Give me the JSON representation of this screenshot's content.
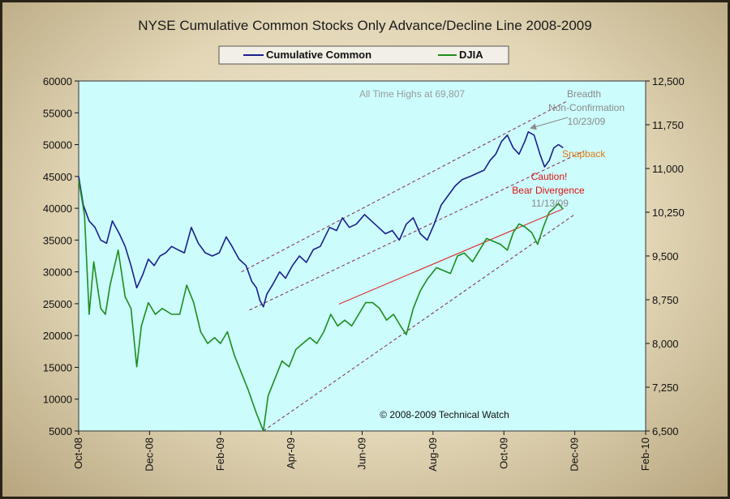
{
  "chart_data": {
    "type": "line",
    "title": "NYSE Cumulative Common Stocks Only Advance/Decline Line 2008-2009",
    "x_ticks": [
      "Oct-08",
      "Dec-08",
      "Feb-09",
      "Apr-09",
      "Jun-09",
      "Aug-09",
      "Oct-09",
      "Dec-09",
      "Feb-10"
    ],
    "x_range": [
      "2008-10-01",
      "2010-02-01"
    ],
    "y_left": {
      "range": [
        5000,
        60000
      ],
      "ticks": [
        "5000",
        "10000",
        "15000",
        "20000",
        "25000",
        "30000",
        "35000",
        "40000",
        "45000",
        "50000",
        "55000",
        "60000"
      ]
    },
    "y_right": {
      "range": [
        6500,
        12500
      ],
      "ticks": [
        "6,500",
        "7,250",
        "8,000",
        "8,750",
        "9,500",
        "10,250",
        "11,000",
        "11,750",
        "12,500"
      ]
    },
    "grid": false,
    "legend_position": "top-center",
    "series": [
      {
        "name": "Cumulative Common",
        "axis": "left",
        "color": "#1a1f8c",
        "points": [
          [
            "2008-10-01",
            45000
          ],
          [
            "2008-10-05",
            40500
          ],
          [
            "2008-10-10",
            38000
          ],
          [
            "2008-10-15",
            37000
          ],
          [
            "2008-10-20",
            35000
          ],
          [
            "2008-10-25",
            34500
          ],
          [
            "2008-10-30",
            38000
          ],
          [
            "2008-11-05",
            36000
          ],
          [
            "2008-11-10",
            34000
          ],
          [
            "2008-11-15",
            31000
          ],
          [
            "2008-11-20",
            27500
          ],
          [
            "2008-11-25",
            29500
          ],
          [
            "2008-11-30",
            32000
          ],
          [
            "2008-12-05",
            31000
          ],
          [
            "2008-12-10",
            32500
          ],
          [
            "2008-12-15",
            33000
          ],
          [
            "2008-12-20",
            34000
          ],
          [
            "2008-12-25",
            33500
          ],
          [
            "2008-12-31",
            33000
          ],
          [
            "2009-01-06",
            37000
          ],
          [
            "2009-01-12",
            34500
          ],
          [
            "2009-01-18",
            33000
          ],
          [
            "2009-01-24",
            32500
          ],
          [
            "2009-01-30",
            33000
          ],
          [
            "2009-02-05",
            35500
          ],
          [
            "2009-02-10",
            34000
          ],
          [
            "2009-02-16",
            32000
          ],
          [
            "2009-02-22",
            31000
          ],
          [
            "2009-02-27",
            28500
          ],
          [
            "2009-03-03",
            27500
          ],
          [
            "2009-03-06",
            25500
          ],
          [
            "2009-03-09",
            24500
          ],
          [
            "2009-03-12",
            26500
          ],
          [
            "2009-03-17",
            28000
          ],
          [
            "2009-03-23",
            30000
          ],
          [
            "2009-03-28",
            29000
          ],
          [
            "2009-04-03",
            31000
          ],
          [
            "2009-04-09",
            32500
          ],
          [
            "2009-04-15",
            31500
          ],
          [
            "2009-04-21",
            33500
          ],
          [
            "2009-04-27",
            34000
          ],
          [
            "2009-05-05",
            37000
          ],
          [
            "2009-05-11",
            36500
          ],
          [
            "2009-05-16",
            38500
          ],
          [
            "2009-05-22",
            37000
          ],
          [
            "2009-05-28",
            37500
          ],
          [
            "2009-06-04",
            39000
          ],
          [
            "2009-06-10",
            38000
          ],
          [
            "2009-06-16",
            37000
          ],
          [
            "2009-06-22",
            36000
          ],
          [
            "2009-06-28",
            36500
          ],
          [
            "2009-07-04",
            35000
          ],
          [
            "2009-07-10",
            37500
          ],
          [
            "2009-07-16",
            38500
          ],
          [
            "2009-07-22",
            36000
          ],
          [
            "2009-07-28",
            35000
          ],
          [
            "2009-08-03",
            37500
          ],
          [
            "2009-08-09",
            40500
          ],
          [
            "2009-08-15",
            42000
          ],
          [
            "2009-08-21",
            43500
          ],
          [
            "2009-08-27",
            44500
          ],
          [
            "2009-09-03",
            45000
          ],
          [
            "2009-09-09",
            45500
          ],
          [
            "2009-09-15",
            46000
          ],
          [
            "2009-09-20",
            47500
          ],
          [
            "2009-09-25",
            48500
          ],
          [
            "2009-09-30",
            50500
          ],
          [
            "2009-10-05",
            51500
          ],
          [
            "2009-10-10",
            49500
          ],
          [
            "2009-10-15",
            48500
          ],
          [
            "2009-10-20",
            50500
          ],
          [
            "2009-10-23",
            52000
          ],
          [
            "2009-10-28",
            51500
          ],
          [
            "2009-11-02",
            48500
          ],
          [
            "2009-11-06",
            46500
          ],
          [
            "2009-11-10",
            47500
          ],
          [
            "2009-11-14",
            49500
          ],
          [
            "2009-11-18",
            50000
          ],
          [
            "2009-11-22",
            49500
          ]
        ]
      },
      {
        "name": "DJIA",
        "axis": "right",
        "color": "#1e8c1e",
        "points": [
          [
            "2008-10-01",
            10800
          ],
          [
            "2008-10-06",
            10200
          ],
          [
            "2008-10-10",
            8500
          ],
          [
            "2008-10-14",
            9400
          ],
          [
            "2008-10-20",
            8600
          ],
          [
            "2008-10-24",
            8500
          ],
          [
            "2008-10-28",
            9000
          ],
          [
            "2008-11-04",
            9600
          ],
          [
            "2008-11-10",
            8800
          ],
          [
            "2008-11-15",
            8600
          ],
          [
            "2008-11-20",
            7600
          ],
          [
            "2008-11-24",
            8300
          ],
          [
            "2008-11-30",
            8700
          ],
          [
            "2008-12-06",
            8500
          ],
          [
            "2008-12-12",
            8600
          ],
          [
            "2008-12-20",
            8500
          ],
          [
            "2008-12-27",
            8500
          ],
          [
            "2009-01-02",
            9000
          ],
          [
            "2009-01-08",
            8700
          ],
          [
            "2009-01-14",
            8200
          ],
          [
            "2009-01-20",
            8000
          ],
          [
            "2009-01-26",
            8100
          ],
          [
            "2009-01-31",
            8000
          ],
          [
            "2009-02-06",
            8200
          ],
          [
            "2009-02-12",
            7800
          ],
          [
            "2009-02-18",
            7500
          ],
          [
            "2009-02-24",
            7200
          ],
          [
            "2009-03-03",
            6800
          ],
          [
            "2009-03-09",
            6500
          ],
          [
            "2009-03-13",
            7100
          ],
          [
            "2009-03-19",
            7400
          ],
          [
            "2009-03-25",
            7700
          ],
          [
            "2009-03-31",
            7600
          ],
          [
            "2009-04-06",
            7900
          ],
          [
            "2009-04-12",
            8000
          ],
          [
            "2009-04-18",
            8100
          ],
          [
            "2009-04-24",
            8000
          ],
          [
            "2009-04-30",
            8200
          ],
          [
            "2009-05-06",
            8500
          ],
          [
            "2009-05-12",
            8300
          ],
          [
            "2009-05-18",
            8400
          ],
          [
            "2009-05-24",
            8300
          ],
          [
            "2009-05-30",
            8500
          ],
          [
            "2009-06-05",
            8700
          ],
          [
            "2009-06-11",
            8700
          ],
          [
            "2009-06-17",
            8600
          ],
          [
            "2009-06-23",
            8400
          ],
          [
            "2009-06-29",
            8500
          ],
          [
            "2009-07-05",
            8300
          ],
          [
            "2009-07-10",
            8150
          ],
          [
            "2009-07-16",
            8600
          ],
          [
            "2009-07-22",
            8900
          ],
          [
            "2009-07-28",
            9100
          ],
          [
            "2009-08-05",
            9300
          ],
          [
            "2009-08-11",
            9250
          ],
          [
            "2009-08-17",
            9200
          ],
          [
            "2009-08-23",
            9500
          ],
          [
            "2009-08-29",
            9550
          ],
          [
            "2009-09-05",
            9400
          ],
          [
            "2009-09-11",
            9600
          ],
          [
            "2009-09-17",
            9800
          ],
          [
            "2009-09-23",
            9750
          ],
          [
            "2009-09-29",
            9700
          ],
          [
            "2009-10-05",
            9600
          ],
          [
            "2009-10-10",
            9900
          ],
          [
            "2009-10-15",
            10050
          ],
          [
            "2009-10-20",
            10000
          ],
          [
            "2009-10-26",
            9900
          ],
          [
            "2009-10-31",
            9700
          ],
          [
            "2009-11-05",
            10000
          ],
          [
            "2009-11-10",
            10250
          ],
          [
            "2009-11-13",
            10300
          ],
          [
            "2009-11-18",
            10400
          ],
          [
            "2009-11-22",
            10300
          ]
        ]
      }
    ],
    "channel_lines": [
      {
        "type": "dashed",
        "axis": "left",
        "from": [
          "2009-02-18",
          30000
        ],
        "to": [
          "2009-11-25",
          56800
        ]
      },
      {
        "type": "dashed",
        "axis": "left",
        "from": [
          "2009-02-25",
          24000
        ],
        "to": [
          "2009-12-10",
          49000
        ]
      },
      {
        "type": "dashed",
        "axis": "right",
        "from": [
          "2009-03-09",
          6500
        ],
        "to": [
          "2009-12-01",
          10200
        ]
      },
      {
        "type": "solid",
        "axis": "right",
        "from": [
          "2009-05-13",
          8675
        ],
        "to": [
          "2009-11-21",
          10300
        ]
      }
    ],
    "annotations": [
      {
        "text": "All Time Highs at 69,807",
        "color": "#9a9a9a"
      },
      {
        "text": "Breadth",
        "color": "#8a8a8a"
      },
      {
        "text": "Non-Confirmation",
        "color": "#8a8a8a"
      },
      {
        "text": "10/23/09",
        "color": "#8a8a8a"
      },
      {
        "text": "Snapback",
        "color": "#e07a10"
      },
      {
        "text": "Caution!",
        "color": "#e01010"
      },
      {
        "text": "Bear Divergence",
        "color": "#e01010"
      },
      {
        "text": "11/13/09",
        "color": "#8a8a8a"
      },
      {
        "text": "© 2008-2009 Technical Watch",
        "color": "#111111"
      }
    ],
    "colors": {
      "plot_background": "#ccfcfc",
      "frame_background": "#e8dec4"
    }
  }
}
